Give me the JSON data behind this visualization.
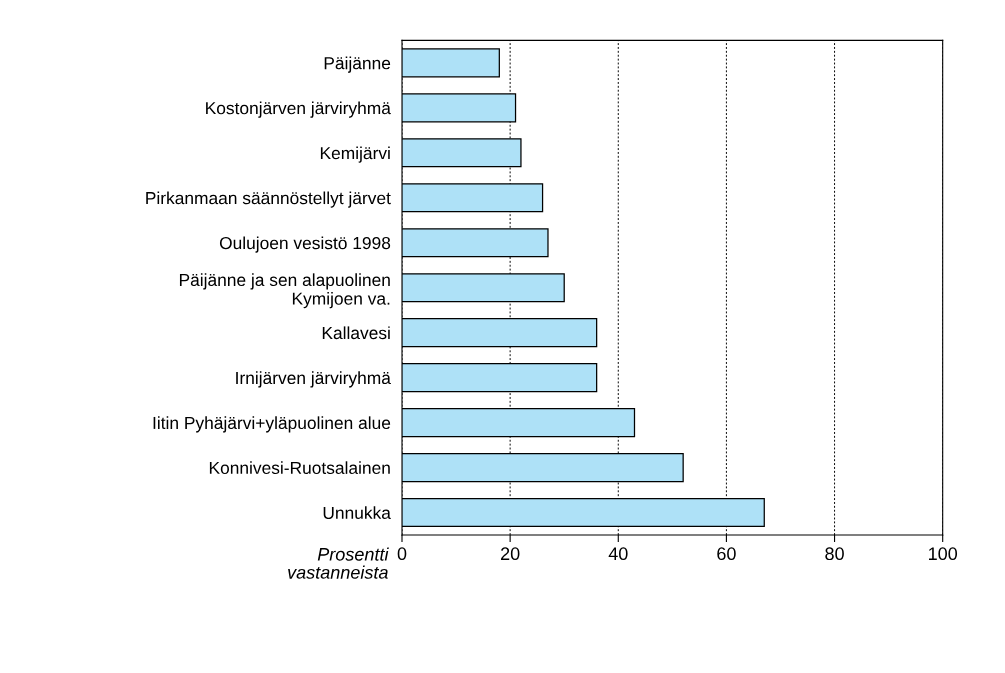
{
  "chart_data": {
    "type": "bar",
    "orientation": "horizontal",
    "xlabel": "Prosentti\nvastanneista",
    "categories": [
      "Päijänne",
      "Kostonjärven järviryhmä",
      "Kemijärvi",
      "Pirkanmaan säännöstellyt järvet",
      "Oulujoen vesistö 1998",
      "Päijänne ja sen alapuolinen\nKymijoen va.",
      "Kallavesi",
      "Irnijärven järviryhmä",
      "Iitin Pyhäjärvi+yläpuolinen alue",
      "Konnivesi-Ruotsalainen",
      "Unnukka"
    ],
    "values": [
      18,
      21,
      22,
      26,
      27,
      30,
      36,
      36,
      43,
      52,
      67
    ],
    "color": "#aee1f7",
    "xlim": [
      0,
      100
    ],
    "xticks": [
      0,
      20,
      40,
      60,
      80,
      100
    ],
    "grid": "x"
  }
}
